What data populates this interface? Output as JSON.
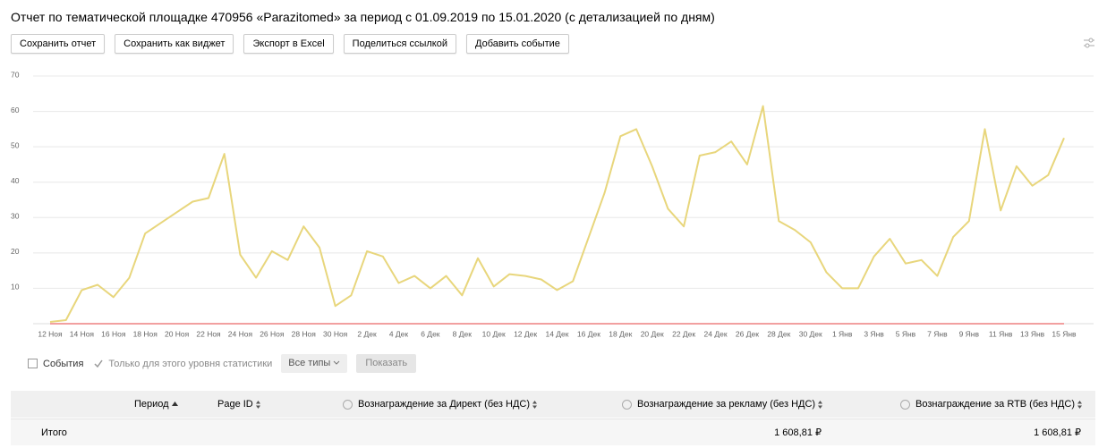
{
  "header": {
    "title": "Отчет по тематической площадке 470956 «Parazitomed» за период с 01.09.2019 по 15.01.2020 (с детализацией по дням)",
    "buttons": [
      "Сохранить отчет",
      "Сохранить как виджет",
      "Экспорт в Excel",
      "Поделиться ссылкой",
      "Добавить событие"
    ]
  },
  "chart_data": {
    "type": "line",
    "categories": [
      "12 Ноя",
      null,
      "14 Ноя",
      null,
      "16 Ноя",
      null,
      "18 Ноя",
      null,
      "20 Ноя",
      null,
      "22 Ноя",
      null,
      "24 Ноя",
      null,
      "26 Ноя",
      null,
      "28 Ноя",
      null,
      "30 Ноя",
      null,
      "2 Дек",
      null,
      "4 Дек",
      null,
      "6 Дек",
      null,
      "8 Дек",
      null,
      "10 Дек",
      null,
      "12 Дек",
      null,
      "14 Дек",
      null,
      "16 Дек",
      null,
      "18 Дек",
      null,
      "20 Дек",
      null,
      "22 Дек",
      null,
      "24 Дек",
      null,
      "26 Дек",
      null,
      "28 Дек",
      null,
      "30 Дек",
      null,
      "1 Янв",
      null,
      "3 Янв",
      null,
      "5 Янв",
      null,
      "7 Янв",
      null,
      "9 Янв",
      null,
      "11 Янв",
      null,
      "13 Янв",
      null,
      "15 Янв"
    ],
    "series": [
      {
        "color": "#e8d67c",
        "values": [
          0.5,
          1,
          9.5,
          11,
          7.5,
          13,
          25.5,
          28.5,
          31.5,
          34.5,
          35.5,
          48,
          19.5,
          13,
          20.5,
          18,
          27.5,
          21.5,
          5,
          8,
          20.5,
          19,
          11.5,
          13.5,
          10,
          13.5,
          8,
          18.5,
          10.5,
          14,
          13.5,
          12.5,
          9.5,
          12,
          24.5,
          37,
          53,
          55,
          44.5,
          32.5,
          27.5,
          47.5,
          48.5,
          51.5,
          45,
          61.5,
          29,
          26.5,
          23,
          14.5,
          10,
          10,
          19,
          24,
          17,
          18,
          13.5,
          24.5,
          29,
          55,
          32,
          44.5,
          39,
          42,
          52.5
        ]
      },
      {
        "color": "#f2a0a0",
        "values": [
          0,
          0,
          0,
          0,
          0,
          0,
          0,
          0,
          0,
          0,
          0,
          0,
          0,
          0,
          0,
          0,
          0,
          0,
          0,
          0,
          0,
          0,
          0,
          0,
          0,
          0,
          0,
          0,
          0,
          0,
          0,
          0,
          0,
          0,
          0,
          0,
          0,
          0,
          0,
          0,
          0,
          0,
          0,
          0,
          0,
          0,
          0,
          0,
          0,
          0,
          0,
          0,
          0,
          0,
          0,
          0,
          0,
          0,
          0,
          0,
          0,
          0,
          0,
          0,
          0
        ]
      }
    ],
    "ylim": [
      0,
      70
    ],
    "yticks": [
      10,
      20,
      30,
      40,
      50,
      60,
      70
    ],
    "grid": true
  },
  "filters": {
    "events": "События",
    "level_only": "Только для этого уровня статистики",
    "types": "Все типы",
    "show": "Показать"
  },
  "table": {
    "columns": [
      "Период",
      "Page ID",
      "Вознаграждение за Директ (без НДС)",
      "Вознаграждение за рекламу (без НДС)",
      "Вознаграждение за RTB (без НДС)"
    ],
    "total": {
      "label": "Итого",
      "ads": "1 608,81 ₽",
      "rtb": "1 608,81 ₽"
    }
  }
}
